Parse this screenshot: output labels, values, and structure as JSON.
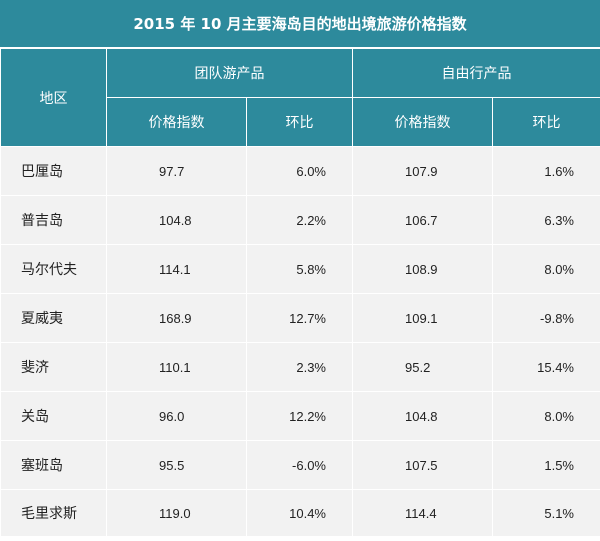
{
  "title": "2015 年 10 月主要海岛目的地出境旅游价格指数",
  "headers": {
    "region": "地区",
    "group": "团队游产品",
    "fit": "自由行产品",
    "index": "价格指数",
    "mom": "环比"
  },
  "rows": [
    {
      "region": "巴厘岛",
      "g_index": "97.7",
      "g_mom": "6.0%",
      "f_index": "107.9",
      "f_mom": "1.6%"
    },
    {
      "region": "普吉岛",
      "g_index": "104.8",
      "g_mom": "2.2%",
      "f_index": "106.7",
      "f_mom": "6.3%"
    },
    {
      "region": "马尔代夫",
      "g_index": "114.1",
      "g_mom": "5.8%",
      "f_index": "108.9",
      "f_mom": "8.0%"
    },
    {
      "region": "夏威夷",
      "g_index": "168.9",
      "g_mom": "12.7%",
      "f_index": "109.1",
      "f_mom": "-9.8%"
    },
    {
      "region": "斐济",
      "g_index": "110.1",
      "g_mom": "2.3%",
      "f_index": "95.2",
      "f_mom": "15.4%"
    },
    {
      "region": "关岛",
      "g_index": "96.0",
      "g_mom": "12.2%",
      "f_index": "104.8",
      "f_mom": "8.0%"
    },
    {
      "region": "塞班岛",
      "g_index": "95.5",
      "g_mom": "-6.0%",
      "f_index": "107.5",
      "f_mom": "1.5%"
    },
    {
      "region": "毛里求斯",
      "g_index": "119.0",
      "g_mom": "10.4%",
      "f_index": "114.4",
      "f_mom": "5.1%"
    }
  ],
  "colors": {
    "header_bg": "#2d8a9c",
    "row_bg": "#f2f2f2"
  }
}
